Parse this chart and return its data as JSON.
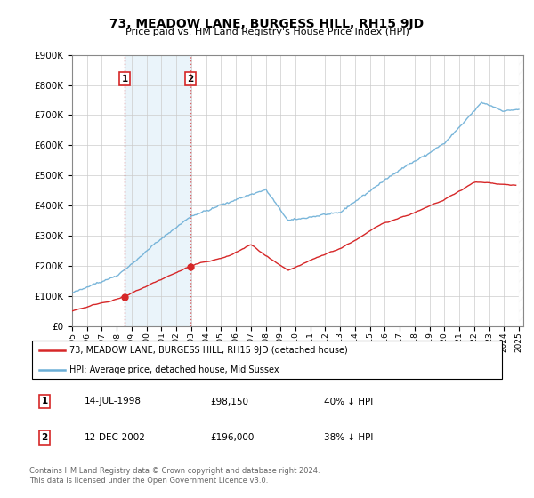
{
  "title": "73, MEADOW LANE, BURGESS HILL, RH15 9JD",
  "subtitle": "Price paid vs. HM Land Registry's House Price Index (HPI)",
  "hpi_color": "#6baed6",
  "price_color": "#d62728",
  "vline_color": "#d62728",
  "purchase1_date": 1998.54,
  "purchase1_price": 98150,
  "purchase2_date": 2002.95,
  "purchase2_price": 196000,
  "xmin": 1995.0,
  "xmax": 2025.3,
  "ymin": 0,
  "ymax": 900000,
  "yticks": [
    0,
    100000,
    200000,
    300000,
    400000,
    500000,
    600000,
    700000,
    800000,
    900000
  ],
  "xticks": [
    1995,
    1996,
    1997,
    1998,
    1999,
    2000,
    2001,
    2002,
    2003,
    2004,
    2005,
    2006,
    2007,
    2008,
    2009,
    2010,
    2011,
    2012,
    2013,
    2014,
    2015,
    2016,
    2017,
    2018,
    2019,
    2020,
    2021,
    2022,
    2023,
    2024,
    2025
  ],
  "legend_line1": "73, MEADOW LANE, BURGESS HILL, RH15 9JD (detached house)",
  "legend_line2": "HPI: Average price, detached house, Mid Sussex",
  "table_row1": [
    "1",
    "14-JUL-1998",
    "£98,150",
    "40% ↓ HPI"
  ],
  "table_row2": [
    "2",
    "12-DEC-2002",
    "£196,000",
    "38% ↓ HPI"
  ],
  "footer": "Contains HM Land Registry data © Crown copyright and database right 2024.\nThis data is licensed under the Open Government Licence v3.0.",
  "box_color": "#d62728",
  "shaded_region_color": "#ddeef8",
  "shaded_region_alpha": 0.6,
  "hatch_color": "#aaaaaa"
}
